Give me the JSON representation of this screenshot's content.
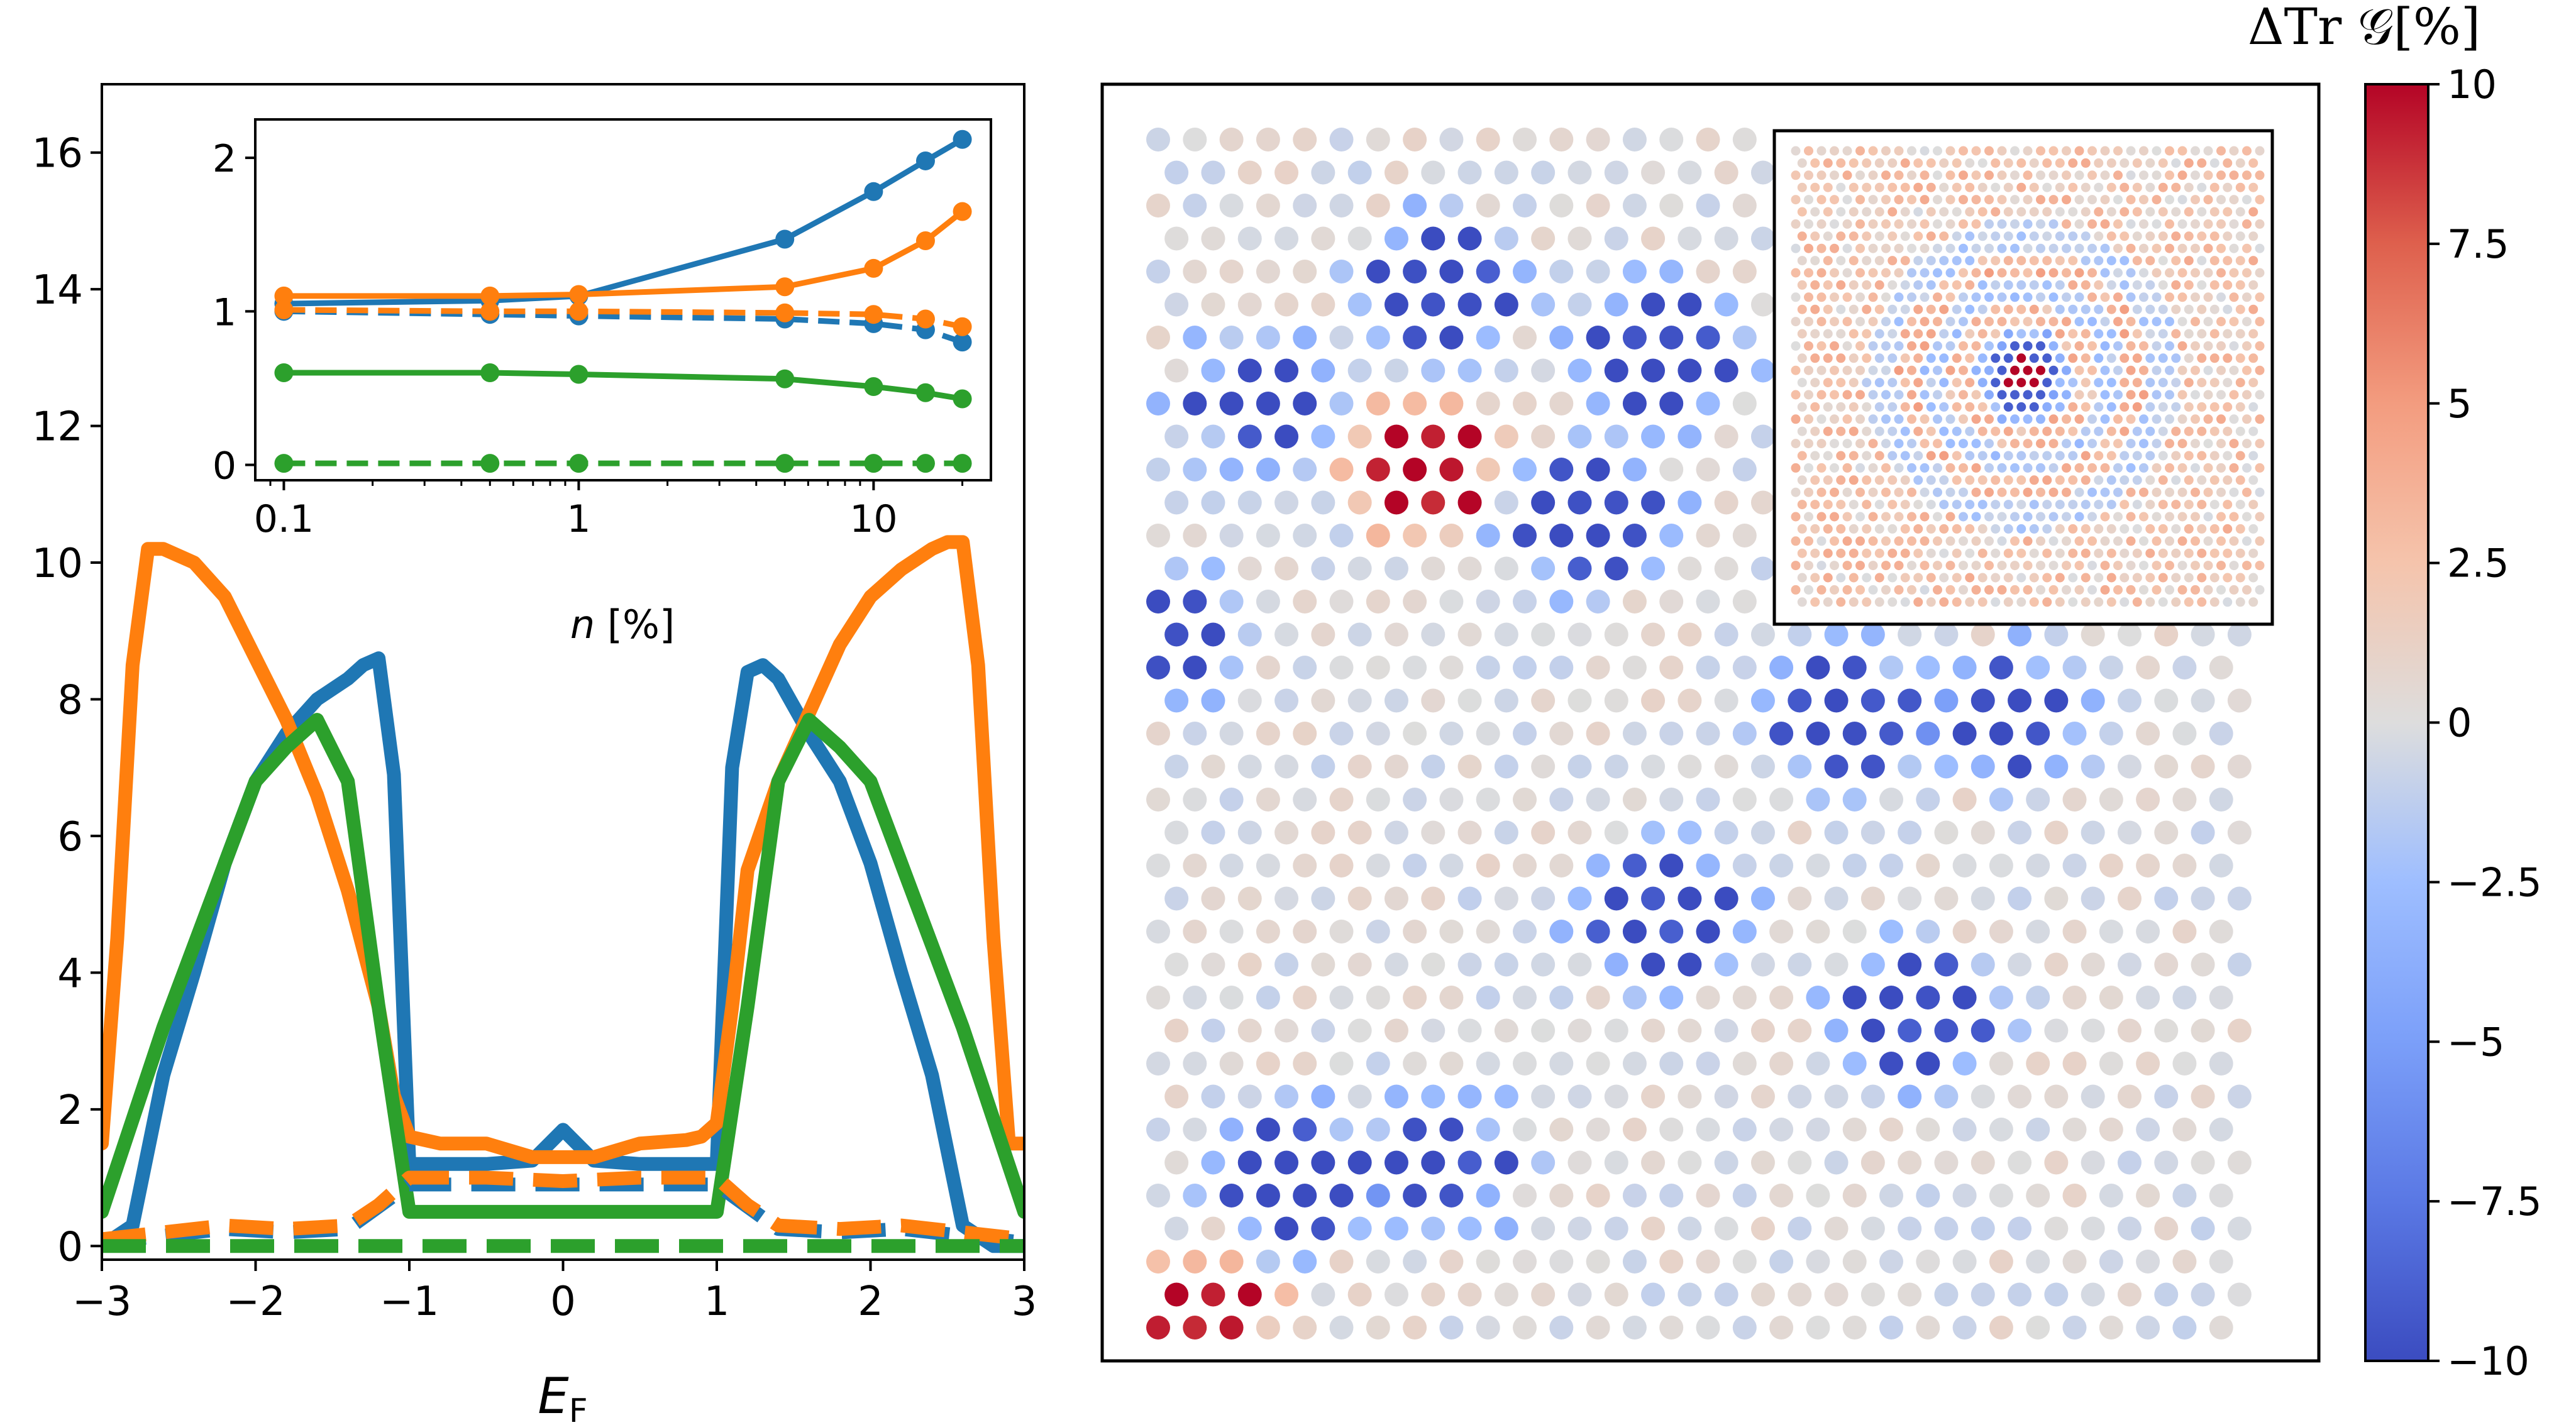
{
  "chart_data": [
    {
      "type": "line",
      "panel": "main-left",
      "xlabel": "E_F",
      "xlim": [
        -3,
        3
      ],
      "ylim": [
        -0.2,
        17
      ],
      "x_ticks": [
        "−3",
        "−2",
        "−1",
        "0",
        "1",
        "2",
        "3"
      ],
      "y_ticks": [
        "0",
        "2",
        "4",
        "6",
        "8",
        "10",
        "12",
        "14",
        "16"
      ],
      "series": [
        {
          "color": "#1f77b4",
          "style": "solid",
          "x": [
            -3,
            -2.8,
            -2.6,
            -2.4,
            -2.2,
            -2.0,
            -1.8,
            -1.6,
            -1.4,
            -1.3,
            -1.2,
            -1.1,
            -1.0,
            -0.8,
            -0.5,
            -0.2,
            0,
            0.2,
            0.5,
            0.8,
            0.9,
            1.0,
            1.1,
            1.2,
            1.3,
            1.4,
            1.6,
            1.8,
            2.0,
            2.2,
            2.4,
            2.6,
            2.8,
            3.0
          ],
          "y": [
            0,
            0.3,
            2.5,
            4.0,
            5.6,
            6.8,
            7.5,
            8.0,
            8.3,
            8.5,
            8.6,
            6.9,
            1.2,
            1.2,
            1.2,
            1.25,
            1.7,
            1.25,
            1.2,
            1.2,
            1.2,
            1.2,
            7.0,
            8.4,
            8.5,
            8.3,
            7.5,
            6.8,
            5.6,
            4.0,
            2.5,
            0.3,
            0,
            0
          ]
        },
        {
          "color": "#ff7f0e",
          "style": "solid",
          "x": [
            -3,
            -2.9,
            -2.8,
            -2.7,
            -2.6,
            -2.5,
            -2.4,
            -2.2,
            -2.0,
            -1.8,
            -1.6,
            -1.4,
            -1.2,
            -1.1,
            -1.0,
            -0.8,
            -0.5,
            -0.2,
            0,
            0.2,
            0.5,
            0.8,
            0.9,
            1.0,
            1.1,
            1.2,
            1.4,
            1.6,
            1.8,
            2.0,
            2.2,
            2.4,
            2.5,
            2.6,
            2.7,
            2.8,
            2.9,
            3.0
          ],
          "y": [
            1.5,
            4.5,
            8.5,
            10.2,
            10.2,
            10.1,
            10.0,
            9.5,
            8.6,
            7.7,
            6.6,
            5.2,
            3.5,
            2.2,
            1.6,
            1.5,
            1.5,
            1.3,
            1.3,
            1.3,
            1.5,
            1.55,
            1.6,
            1.8,
            3.5,
            5.5,
            6.8,
            7.8,
            8.8,
            9.5,
            9.9,
            10.2,
            10.3,
            10.3,
            8.5,
            4.5,
            1.5,
            1.5
          ]
        },
        {
          "color": "#2ca02c",
          "style": "solid",
          "x": [
            -3,
            -2.6,
            -2.2,
            -2.0,
            -1.8,
            -1.6,
            -1.4,
            -1.2,
            -1.0,
            1.0,
            1.2,
            1.4,
            1.6,
            1.8,
            2.0,
            2.2,
            2.6,
            3.0
          ],
          "y": [
            0.5,
            3.2,
            5.6,
            6.8,
            7.3,
            7.7,
            6.8,
            3.5,
            0.5,
            0.5,
            3.5,
            6.8,
            7.7,
            7.3,
            6.8,
            5.6,
            3.2,
            0.5
          ]
        },
        {
          "color": "#1f77b4",
          "style": "dashed",
          "x": [
            -3,
            -2.6,
            -2.2,
            -1.8,
            -1.4,
            -1.0,
            0,
            1.0,
            1.4,
            1.8,
            2.2,
            2.6,
            3.0
          ],
          "y": [
            0.05,
            0.15,
            0.25,
            0.2,
            0.25,
            0.9,
            0.9,
            0.9,
            0.25,
            0.2,
            0.25,
            0.15,
            0.05
          ]
        },
        {
          "color": "#ff7f0e",
          "style": "dashed",
          "x": [
            -3,
            -2.6,
            -2.2,
            -1.8,
            -1.4,
            -1.2,
            -1.0,
            -0.5,
            0,
            0.5,
            1.0,
            1.2,
            1.4,
            1.8,
            2.2,
            2.6,
            3.0
          ],
          "y": [
            0.1,
            0.2,
            0.3,
            0.25,
            0.3,
            0.6,
            1.0,
            1.0,
            0.95,
            1.0,
            1.0,
            0.6,
            0.3,
            0.25,
            0.3,
            0.2,
            0.1
          ]
        },
        {
          "color": "#2ca02c",
          "style": "dashed",
          "x": [
            -3,
            3
          ],
          "y": [
            0,
            0
          ]
        }
      ]
    },
    {
      "type": "line",
      "panel": "inset",
      "xlabel": "n [%]",
      "xscale": "log",
      "xlim": [
        0.08,
        25
      ],
      "ylim": [
        -0.1,
        2.25
      ],
      "x_ticks": [
        {
          "value": 0.1,
          "label": "0.1"
        },
        {
          "value": 1,
          "label": "1"
        },
        {
          "value": 10,
          "label": "10"
        }
      ],
      "y_ticks": [
        "0",
        "1",
        "2"
      ],
      "series": [
        {
          "color": "#1f77b4",
          "style": "solid",
          "marker": "o",
          "x": [
            0.1,
            0.5,
            1,
            5,
            10,
            15,
            20
          ],
          "y": [
            1.05,
            1.07,
            1.1,
            1.47,
            1.78,
            1.98,
            2.12
          ]
        },
        {
          "color": "#ff7f0e",
          "style": "solid",
          "marker": "o",
          "x": [
            0.1,
            0.5,
            1,
            5,
            10,
            15,
            20
          ],
          "y": [
            1.1,
            1.1,
            1.11,
            1.16,
            1.28,
            1.46,
            1.65
          ]
        },
        {
          "color": "#1f77b4",
          "style": "dashed",
          "marker": "o",
          "x": [
            0.1,
            0.5,
            1,
            5,
            10,
            15,
            20
          ],
          "y": [
            1.0,
            0.98,
            0.97,
            0.95,
            0.92,
            0.88,
            0.8
          ]
        },
        {
          "color": "#ff7f0e",
          "style": "dashed",
          "marker": "o",
          "x": [
            0.1,
            0.5,
            1,
            5,
            10,
            15,
            20
          ],
          "y": [
            1.01,
            1.0,
            1.0,
            0.99,
            0.98,
            0.95,
            0.9
          ]
        },
        {
          "color": "#2ca02c",
          "style": "solid",
          "marker": "o",
          "x": [
            0.1,
            0.5,
            1,
            5,
            10,
            15,
            20
          ],
          "y": [
            0.6,
            0.6,
            0.59,
            0.56,
            0.51,
            0.47,
            0.43
          ]
        },
        {
          "color": "#2ca02c",
          "style": "dashed",
          "marker": "o",
          "x": [
            0.1,
            0.5,
            1,
            5,
            10,
            15,
            20
          ],
          "y": [
            0.01,
            0.01,
            0.01,
            0.01,
            0.01,
            0.01,
            0.01
          ]
        }
      ]
    },
    {
      "type": "heatmap",
      "panel": "lattice",
      "description_colormap": "coolwarm",
      "vmin": -10,
      "vmax": 10,
      "colorbar_label": "ΔTr 𝒢[%]",
      "colorbar_ticks": [
        "10",
        "7.5",
        "5",
        "2.5",
        "0",
        "−2.5",
        "−5",
        "−7.5",
        "−10"
      ],
      "clusters": [
        {
          "row": 4.5,
          "col": 7.5,
          "value": -10
        },
        {
          "row": 6.5,
          "col": 13.5,
          "value": -10
        },
        {
          "row": 8.0,
          "col": 2.5,
          "value": -10
        },
        {
          "row": 10.0,
          "col": 7.0,
          "value": 10
        },
        {
          "row": 11.5,
          "col": 11.5,
          "value": -10
        },
        {
          "row": 17.5,
          "col": 18.5,
          "value": -10
        },
        {
          "row": 17.5,
          "col": 23.0,
          "value": -10
        },
        {
          "row": 23.5,
          "col": 13.5,
          "value": -10
        },
        {
          "row": 26.5,
          "col": 20.5,
          "value": -10
        },
        {
          "row": 31.5,
          "col": 3.5,
          "value": -10
        },
        {
          "row": 31.0,
          "col": 7.5,
          "value": -10
        }
      ],
      "edge_clusters": [
        {
          "row": 15.0,
          "col": 0.0,
          "value": -10
        },
        {
          "row": 36.0,
          "col": 1.0,
          "value": 10
        }
      ],
      "inset": {
        "type": "heatmap",
        "pattern": "concentric rings around central defect",
        "vmin": -10,
        "vmax": 10
      }
    }
  ]
}
